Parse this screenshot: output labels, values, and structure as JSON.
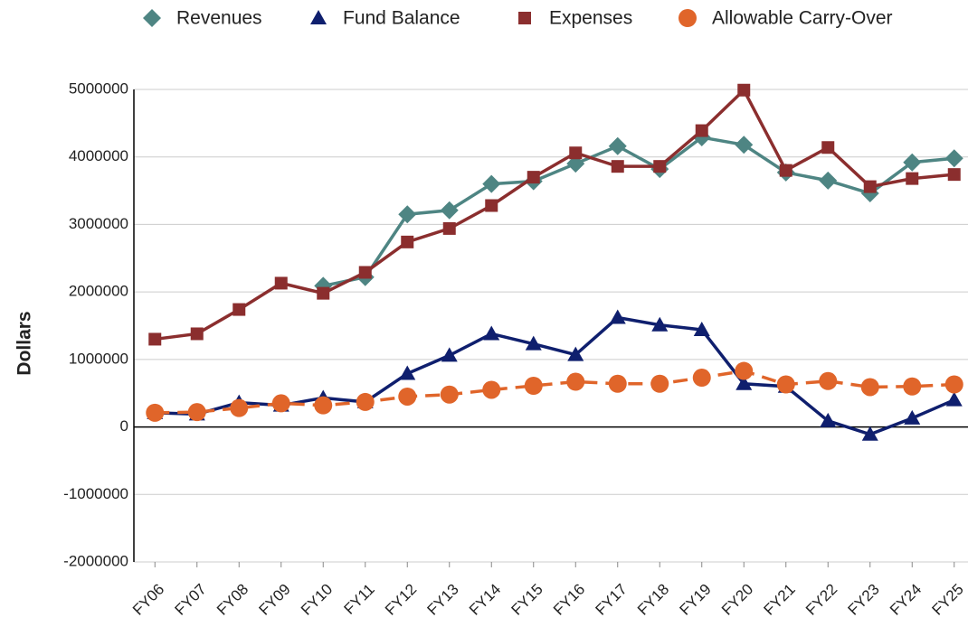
{
  "chart_data": {
    "type": "line",
    "y_label": "Dollars",
    "categories": [
      "FY06",
      "FY07",
      "FY08",
      "FY09",
      "FY10",
      "FY11",
      "FY12",
      "FY13",
      "FY14",
      "FY15",
      "FY16",
      "FY17",
      "FY18",
      "FY19",
      "FY20",
      "FY21",
      "FY22",
      "FY23",
      "FY24",
      "FY25"
    ],
    "series": [
      {
        "name": "Revenues",
        "color": "#4e8583",
        "marker": "diamond",
        "dash": false,
        "values": [
          null,
          null,
          null,
          null,
          2090000,
          2220000,
          3150000,
          3210000,
          3600000,
          3640000,
          3900000,
          4160000,
          3820000,
          4290000,
          4180000,
          3770000,
          3650000,
          3460000,
          3920000,
          3980000
        ]
      },
      {
        "name": "Fund Balance",
        "color": "#0f1f6e",
        "marker": "triangle",
        "dash": false,
        "values": [
          210000,
          190000,
          360000,
          320000,
          430000,
          370000,
          790000,
          1060000,
          1380000,
          1230000,
          1070000,
          1620000,
          1510000,
          1440000,
          640000,
          600000,
          90000,
          -110000,
          130000,
          400000
        ]
      },
      {
        "name": "Expenses",
        "color": "#8b2e2e",
        "marker": "square",
        "dash": false,
        "values": [
          1300000,
          1380000,
          1740000,
          2130000,
          1980000,
          2290000,
          2740000,
          2940000,
          3280000,
          3700000,
          4060000,
          3860000,
          3860000,
          4390000,
          4990000,
          3800000,
          4140000,
          3560000,
          3680000,
          3740000
        ]
      },
      {
        "name": "Allowable Carry-Over",
        "color": "#e0652a",
        "marker": "circle",
        "dash": true,
        "values": [
          210000,
          220000,
          280000,
          350000,
          320000,
          370000,
          450000,
          480000,
          550000,
          610000,
          670000,
          640000,
          640000,
          730000,
          830000,
          630000,
          680000,
          590000,
          600000,
          630000
        ]
      }
    ],
    "ylim": [
      -2000000,
      5000000
    ],
    "yticks": [
      -2000000,
      -1000000,
      0,
      1000000,
      2000000,
      3000000,
      4000000,
      5000000
    ],
    "grid": true,
    "legend": "top"
  }
}
